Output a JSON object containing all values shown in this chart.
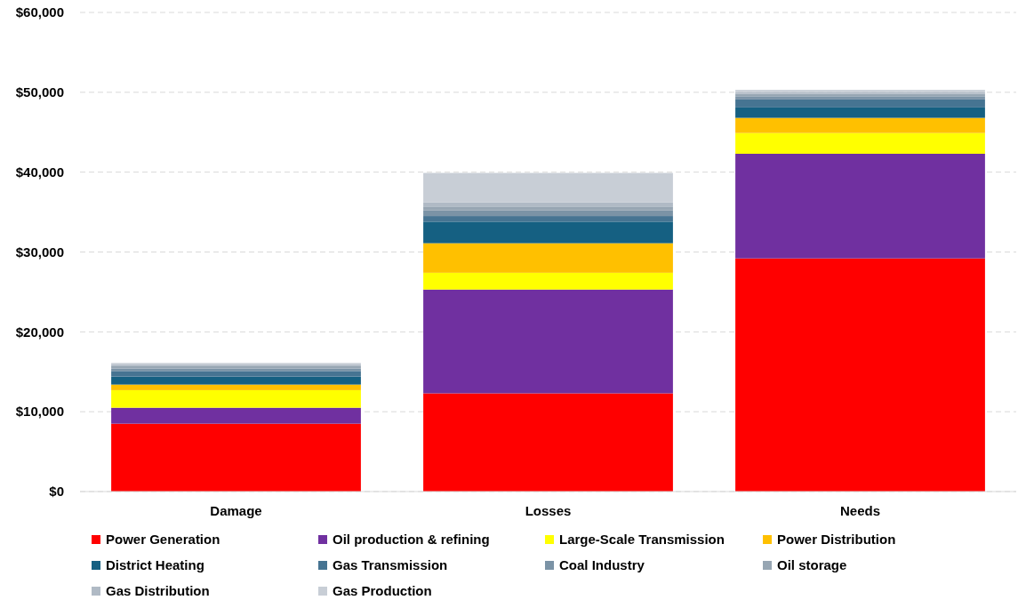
{
  "chart_data": {
    "type": "bar",
    "stacked": true,
    "categories": [
      "Damage",
      "Losses",
      "Needs"
    ],
    "series": [
      {
        "name": "Power Generation",
        "color": "#ff0000",
        "values": [
          8500,
          12300,
          29200
        ]
      },
      {
        "name": "Oil production & refining",
        "color": "#7030a0",
        "values": [
          2000,
          13000,
          13100
        ]
      },
      {
        "name": "Large-Scale Transmission",
        "color": "#ffff00",
        "values": [
          2200,
          2100,
          2600
        ]
      },
      {
        "name": "Power Distribution",
        "color": "#ffc000",
        "values": [
          700,
          3700,
          1900
        ]
      },
      {
        "name": "District Heating",
        "color": "#156082",
        "values": [
          1000,
          2700,
          1300
        ]
      },
      {
        "name": "Gas Transmission",
        "color": "#467492",
        "values": [
          700,
          700,
          1000
        ]
      },
      {
        "name": "Coal Industry",
        "color": "#7b93a6",
        "values": [
          300,
          700,
          400
        ]
      },
      {
        "name": "Oil storage",
        "color": "#97a6b3",
        "values": [
          300,
          500,
          300
        ]
      },
      {
        "name": "Gas Distribution",
        "color": "#b0bac5",
        "values": [
          200,
          500,
          200
        ]
      },
      {
        "name": "Gas Production",
        "color": "#c8ced6",
        "values": [
          200,
          3700,
          300
        ]
      }
    ],
    "ylim": [
      0,
      60000
    ],
    "yticks": [
      {
        "value": 0,
        "label": "$0"
      },
      {
        "value": 10000,
        "label": "$10,000"
      },
      {
        "value": 20000,
        "label": "$20,000"
      },
      {
        "value": 30000,
        "label": "$30,000"
      },
      {
        "value": 40000,
        "label": "$40,000"
      },
      {
        "value": 50000,
        "label": "$50,000"
      },
      {
        "value": 60000,
        "label": "$60,000"
      }
    ],
    "grid": "y",
    "legend": "bottom"
  }
}
